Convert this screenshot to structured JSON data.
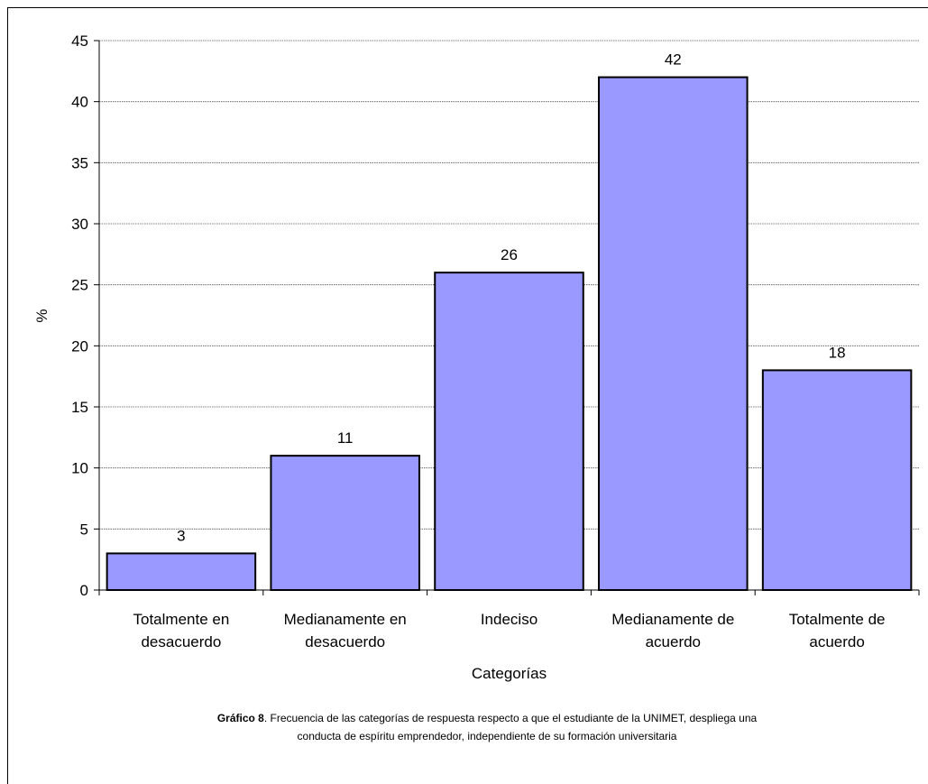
{
  "chart_data": {
    "type": "bar",
    "categories": [
      [
        "Totalmente en",
        "desacuerdo"
      ],
      [
        "Medianamente en",
        "desacuerdo"
      ],
      [
        "Indeciso"
      ],
      [
        "Medianamente de",
        "acuerdo"
      ],
      [
        "Totalmente de",
        "acuerdo"
      ]
    ],
    "values": [
      3,
      11,
      26,
      42,
      18
    ],
    "ylabel": "%",
    "xlabel": "Categorías",
    "ylim": [
      0,
      45
    ],
    "yticks": [
      0,
      5,
      10,
      15,
      20,
      25,
      30,
      35,
      40,
      45
    ],
    "grid": true,
    "bar_color": "#9999ff",
    "data_labels": true
  },
  "caption": {
    "bold": "Gráfico 8",
    "text": ". Frecuencia de las categorías de respuesta respecto a que el estudiante de la UNIMET, despliega una",
    "line2": "conducta de espíritu emprendedor, independiente de su formación universitaria"
  }
}
